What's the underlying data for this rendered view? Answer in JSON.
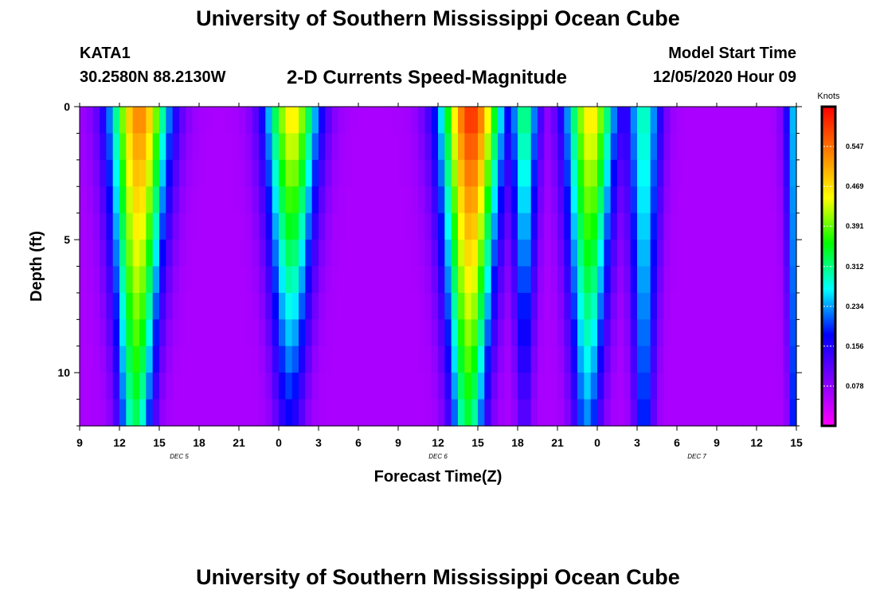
{
  "header": {
    "title": "University of Southern Mississippi Ocean Cube",
    "station_id": "KATA1",
    "coords": "30.2580N 88.2130W",
    "chart_title": "2-D Currents Speed-Magnitude",
    "model_start_label": "Model Start Time",
    "model_start_value": "12/05/2020 Hour 09"
  },
  "footer": {
    "title": "University of Southern Mississippi Ocean Cube"
  },
  "chart_data": {
    "type": "heatmap",
    "title": "2-D Currents Speed-Magnitude",
    "xlabel": "Forecast Time(Z)",
    "ylabel": "Depth (ft)",
    "x_range_hours": [
      0,
      54
    ],
    "y_range_ft": [
      0,
      12
    ],
    "y_inverted": true,
    "x_ticks": [
      "9",
      "12",
      "15",
      "18",
      "21",
      "0",
      "3",
      "6",
      "9",
      "12",
      "15",
      "18",
      "21",
      "0",
      "3",
      "6",
      "9",
      "12",
      "15"
    ],
    "x_tick_hours": [
      0,
      3,
      6,
      9,
      12,
      15,
      18,
      21,
      24,
      27,
      30,
      33,
      36,
      39,
      42,
      45,
      48,
      51,
      54
    ],
    "y_ticks": [
      "0",
      "5",
      "10"
    ],
    "y_tick_values": [
      0,
      5,
      10
    ],
    "day_labels": [
      {
        "label": "DEC 5",
        "hour": 7.5
      },
      {
        "label": "DEC 6",
        "hour": 27
      },
      {
        "label": "DEC 7",
        "hour": 46.5
      }
    ],
    "colorbar": {
      "unit": "Knots",
      "min": 0,
      "max": 0.625,
      "tick_values": [
        0.078,
        0.156,
        0.234,
        0.312,
        0.391,
        0.469,
        0.547
      ],
      "tick_labels": [
        "0.078",
        "0.156",
        "0.234",
        "0.312",
        "0.391",
        "0.469",
        "0.547"
      ],
      "colors": [
        "#ff00ff",
        "#8000ff",
        "#0000ff",
        "#00ffff",
        "#00ff00",
        "#ffff00",
        "#ff8000",
        "#ff0000"
      ]
    },
    "peaks": [
      {
        "hour": 4.5,
        "width": 2.2,
        "surface": 0.54,
        "bottom": 0.32,
        "skew": -0.3
      },
      {
        "hour": 16.0,
        "width": 2.0,
        "surface": 0.47,
        "bottom": 0.16,
        "skew": -0.2
      },
      {
        "hour": 29.5,
        "width": 2.3,
        "surface": 0.6,
        "bottom": 0.33,
        "skew": -0.25
      },
      {
        "hour": 33.5,
        "width": 1.1,
        "surface": 0.33,
        "bottom": 0.12,
        "skew": 0.0
      },
      {
        "hour": 38.5,
        "width": 1.9,
        "surface": 0.47,
        "bottom": 0.22,
        "skew": -0.3
      },
      {
        "hour": 42.5,
        "width": 1.3,
        "surface": 0.3,
        "bottom": 0.2,
        "skew": 0.0
      },
      {
        "hour": 54.0,
        "width": 0.9,
        "surface": 0.26,
        "bottom": 0.22,
        "skew": 0.0
      }
    ],
    "background_speed": 0.06
  }
}
